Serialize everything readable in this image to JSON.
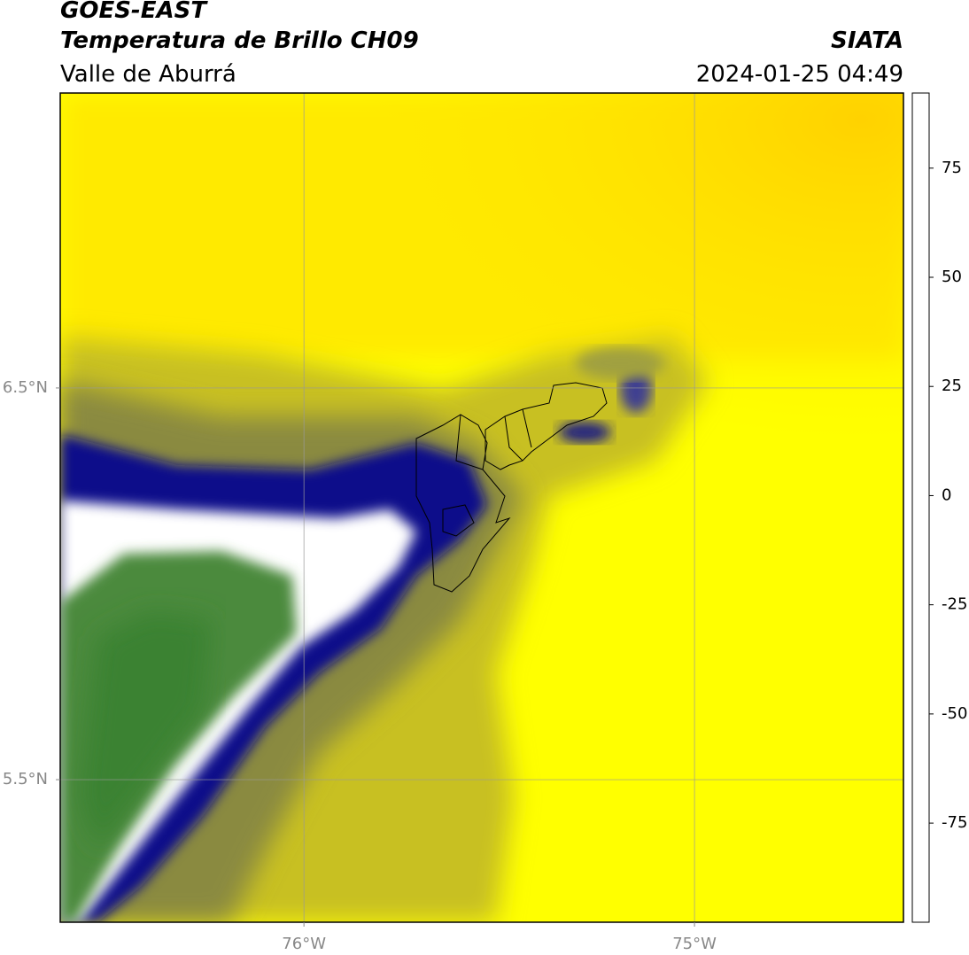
{
  "header": {
    "title": "GOES-EAST",
    "subtitle": "Temperatura de Brillo CH09",
    "region": "Valle de Aburrá",
    "source": "SIATA",
    "datetime": "2024-01-25 04:49"
  },
  "map": {
    "xlim": [
      -76.624,
      -74.465
    ],
    "ylim": [
      5.136,
      7.253
    ],
    "xticks": [
      {
        "value": -76,
        "label": "76°W"
      },
      {
        "value": -75,
        "label": "75°W"
      }
    ],
    "yticks": [
      {
        "value": 6.5,
        "label": "6.5°N"
      },
      {
        "value": 5.5,
        "label": "5.5°N"
      }
    ],
    "grid": true
  },
  "colorbar": {
    "vlim": [
      -97.7,
      92.2
    ],
    "ticks": [
      -75,
      -50,
      -25,
      0,
      25,
      50,
      75
    ],
    "colormap": [
      {
        "value": -97.7,
        "color": "#ffffff"
      },
      {
        "value": -93.4,
        "color": "#ffffff"
      },
      {
        "value": -93.4,
        "color": "#00e8e0"
      },
      {
        "value": -85,
        "color": "#20b090"
      },
      {
        "value": -75,
        "color": "#2e8b3a"
      },
      {
        "value": -65,
        "color": "#3a8a2a"
      },
      {
        "value": -60,
        "color": "#6a9a5a"
      },
      {
        "value": -53,
        "color": "#d0e0d0"
      },
      {
        "value": -50,
        "color": "#ffffff"
      },
      {
        "value": -45,
        "color": "#c0c0e0"
      },
      {
        "value": -35,
        "color": "#5050a8"
      },
      {
        "value": -27,
        "color": "#000080"
      },
      {
        "value": -22,
        "color": "#909040"
      },
      {
        "value": -15,
        "color": "#ffff00"
      },
      {
        "value": -8,
        "color": "#ffe000"
      },
      {
        "value": 0,
        "color": "#ff9000"
      },
      {
        "value": 8.4,
        "color": "#ff2000"
      },
      {
        "value": 8.4,
        "color": "#000000"
      },
      {
        "value": 92.2,
        "color": "#000000"
      }
    ]
  }
}
